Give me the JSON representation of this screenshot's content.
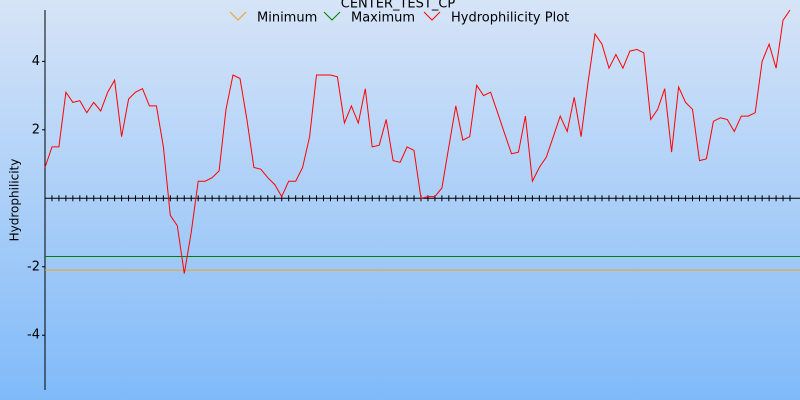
{
  "chart_data": {
    "type": "line",
    "title": "CENTER_TEST_CP",
    "y_label": "Hydrophilicity",
    "ylim": [
      -5.6,
      5.5
    ],
    "yticks": [
      -4,
      -2,
      2,
      4
    ],
    "series": [
      {
        "name": "Minimum",
        "color": "#f0a020",
        "value": -2.1
      },
      {
        "name": "Maximum",
        "color": "#008000",
        "value": -1.7
      },
      {
        "name": "Hydrophilicity Plot",
        "color": "#ff0000",
        "values": [
          0.9,
          1.5,
          1.5,
          3.1,
          2.8,
          2.85,
          2.5,
          2.8,
          2.55,
          3.1,
          3.45,
          1.8,
          2.9,
          3.1,
          3.2,
          2.7,
          2.7,
          1.5,
          -0.5,
          -0.8,
          -2.2,
          -1.0,
          0.5,
          0.5,
          0.6,
          0.8,
          2.6,
          3.6,
          3.5,
          2.3,
          0.9,
          0.85,
          0.6,
          0.4,
          0.05,
          0.5,
          0.5,
          0.9,
          1.8,
          3.6,
          3.6,
          3.6,
          3.55,
          2.2,
          2.7,
          2.2,
          3.2,
          1.5,
          1.55,
          2.3,
          1.1,
          1.05,
          1.5,
          1.4,
          0.0,
          0.05,
          0.05,
          0.3,
          1.5,
          2.7,
          1.7,
          1.8,
          3.3,
          3.0,
          3.1,
          2.5,
          1.9,
          1.3,
          1.35,
          2.4,
          0.5,
          0.9,
          1.2,
          1.8,
          2.4,
          1.95,
          2.95,
          1.8,
          3.4,
          4.8,
          4.5,
          3.8,
          4.2,
          3.8,
          4.3,
          4.35,
          4.25,
          2.3,
          2.6,
          3.2,
          1.35,
          3.25,
          2.8,
          2.6,
          1.1,
          1.15,
          2.25,
          2.35,
          2.3,
          1.95,
          2.4,
          2.4,
          2.5,
          4.0,
          4.5,
          3.8,
          5.2,
          5.5
        ]
      }
    ]
  }
}
